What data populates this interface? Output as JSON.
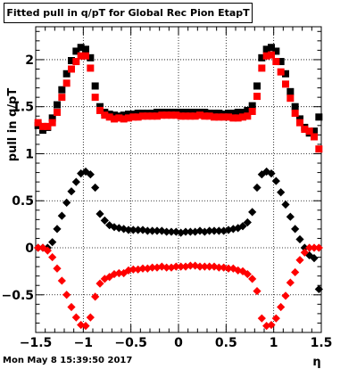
{
  "chart_data": {
    "type": "scatter",
    "title": "Fitted pull in q/pT for Global Rec Pion EtapT",
    "xlabel": "η",
    "ylabel": "pull in q/pT",
    "xlim": [
      -1.5,
      1.5
    ],
    "ylim": [
      -0.9,
      2.35
    ],
    "grid": true,
    "x_ticks": [
      -1.5,
      -1,
      -0.5,
      0,
      0.5,
      1,
      1.5
    ],
    "x_tick_labels": [
      "−1.5",
      "−1",
      "−0.5",
      "0",
      "0.5",
      "1",
      "1.5"
    ],
    "y_ticks": [
      -0.5,
      0,
      0.5,
      1,
      1.5,
      2
    ],
    "y_tick_labels": [
      "−0.5",
      "0",
      "0.5",
      "1",
      "1.5",
      "2"
    ],
    "x": [
      -1.475,
      -1.425,
      -1.375,
      -1.325,
      -1.275,
      -1.225,
      -1.175,
      -1.125,
      -1.075,
      -1.025,
      -0.975,
      -0.925,
      -0.875,
      -0.825,
      -0.775,
      -0.725,
      -0.675,
      -0.625,
      -0.575,
      -0.525,
      -0.475,
      -0.425,
      -0.375,
      -0.325,
      -0.275,
      -0.225,
      -0.175,
      -0.125,
      -0.075,
      -0.025,
      0.025,
      0.075,
      0.125,
      0.175,
      0.225,
      0.275,
      0.325,
      0.375,
      0.425,
      0.475,
      0.525,
      0.575,
      0.625,
      0.675,
      0.725,
      0.775,
      0.825,
      0.875,
      0.925,
      0.975,
      1.025,
      1.075,
      1.125,
      1.175,
      1.225,
      1.275,
      1.325,
      1.375,
      1.425,
      1.475
    ],
    "series": [
      {
        "color": "#000000",
        "marker": "square",
        "values": [
          1.3,
          1.25,
          1.28,
          1.38,
          1.52,
          1.68,
          1.85,
          1.99,
          2.09,
          2.13,
          2.11,
          2.02,
          1.72,
          1.5,
          1.44,
          1.42,
          1.41,
          1.4,
          1.41,
          1.42,
          1.42,
          1.43,
          1.43,
          1.43,
          1.43,
          1.44,
          1.44,
          1.44,
          1.44,
          1.44,
          1.44,
          1.44,
          1.44,
          1.44,
          1.44,
          1.44,
          1.43,
          1.43,
          1.43,
          1.42,
          1.43,
          1.43,
          1.44,
          1.44,
          1.46,
          1.51,
          1.72,
          2.02,
          2.11,
          2.13,
          2.09,
          1.98,
          1.85,
          1.66,
          1.5,
          1.37,
          1.28,
          1.22,
          1.24,
          1.39
        ]
      },
      {
        "color": "#ff0000",
        "marker": "square",
        "values": [
          1.33,
          1.29,
          1.29,
          1.33,
          1.44,
          1.6,
          1.75,
          1.9,
          1.98,
          2.04,
          2.04,
          1.91,
          1.6,
          1.46,
          1.41,
          1.39,
          1.37,
          1.38,
          1.37,
          1.38,
          1.39,
          1.39,
          1.4,
          1.4,
          1.4,
          1.4,
          1.41,
          1.41,
          1.41,
          1.41,
          1.4,
          1.4,
          1.4,
          1.4,
          1.41,
          1.4,
          1.4,
          1.39,
          1.39,
          1.39,
          1.39,
          1.38,
          1.38,
          1.39,
          1.4,
          1.45,
          1.61,
          1.91,
          2.04,
          2.05,
          1.98,
          1.87,
          1.74,
          1.59,
          1.43,
          1.33,
          1.26,
          1.24,
          1.18,
          1.05
        ]
      },
      {
        "color": "#000000",
        "marker": "diamond",
        "values": [
          0.0,
          0.0,
          0.0,
          0.06,
          0.2,
          0.34,
          0.48,
          0.6,
          0.7,
          0.79,
          0.81,
          0.78,
          0.64,
          0.36,
          0.29,
          0.24,
          0.22,
          0.21,
          0.2,
          0.19,
          0.19,
          0.19,
          0.19,
          0.18,
          0.18,
          0.18,
          0.18,
          0.17,
          0.17,
          0.17,
          0.16,
          0.17,
          0.17,
          0.17,
          0.18,
          0.17,
          0.18,
          0.18,
          0.18,
          0.18,
          0.19,
          0.2,
          0.21,
          0.23,
          0.27,
          0.38,
          0.64,
          0.78,
          0.81,
          0.79,
          0.71,
          0.59,
          0.46,
          0.33,
          0.2,
          0.09,
          0.0,
          -0.08,
          -0.11,
          -0.44
        ]
      },
      {
        "color": "#ff0000",
        "marker": "diamond",
        "values": [
          0.0,
          0.0,
          -0.03,
          -0.1,
          -0.22,
          -0.35,
          -0.5,
          -0.63,
          -0.74,
          -0.82,
          -0.83,
          -0.74,
          -0.52,
          -0.38,
          -0.33,
          -0.31,
          -0.28,
          -0.27,
          -0.27,
          -0.24,
          -0.23,
          -0.23,
          -0.22,
          -0.22,
          -0.21,
          -0.21,
          -0.2,
          -0.21,
          -0.21,
          -0.2,
          -0.2,
          -0.2,
          -0.19,
          -0.19,
          -0.2,
          -0.2,
          -0.2,
          -0.2,
          -0.21,
          -0.21,
          -0.22,
          -0.22,
          -0.24,
          -0.25,
          -0.28,
          -0.33,
          -0.46,
          -0.75,
          -0.83,
          -0.82,
          -0.75,
          -0.63,
          -0.51,
          -0.37,
          -0.26,
          -0.13,
          -0.05,
          0.0,
          0.0,
          0.0
        ]
      }
    ]
  },
  "footer": {
    "timestamp": "Mon May  8 15:39:50 2017"
  }
}
